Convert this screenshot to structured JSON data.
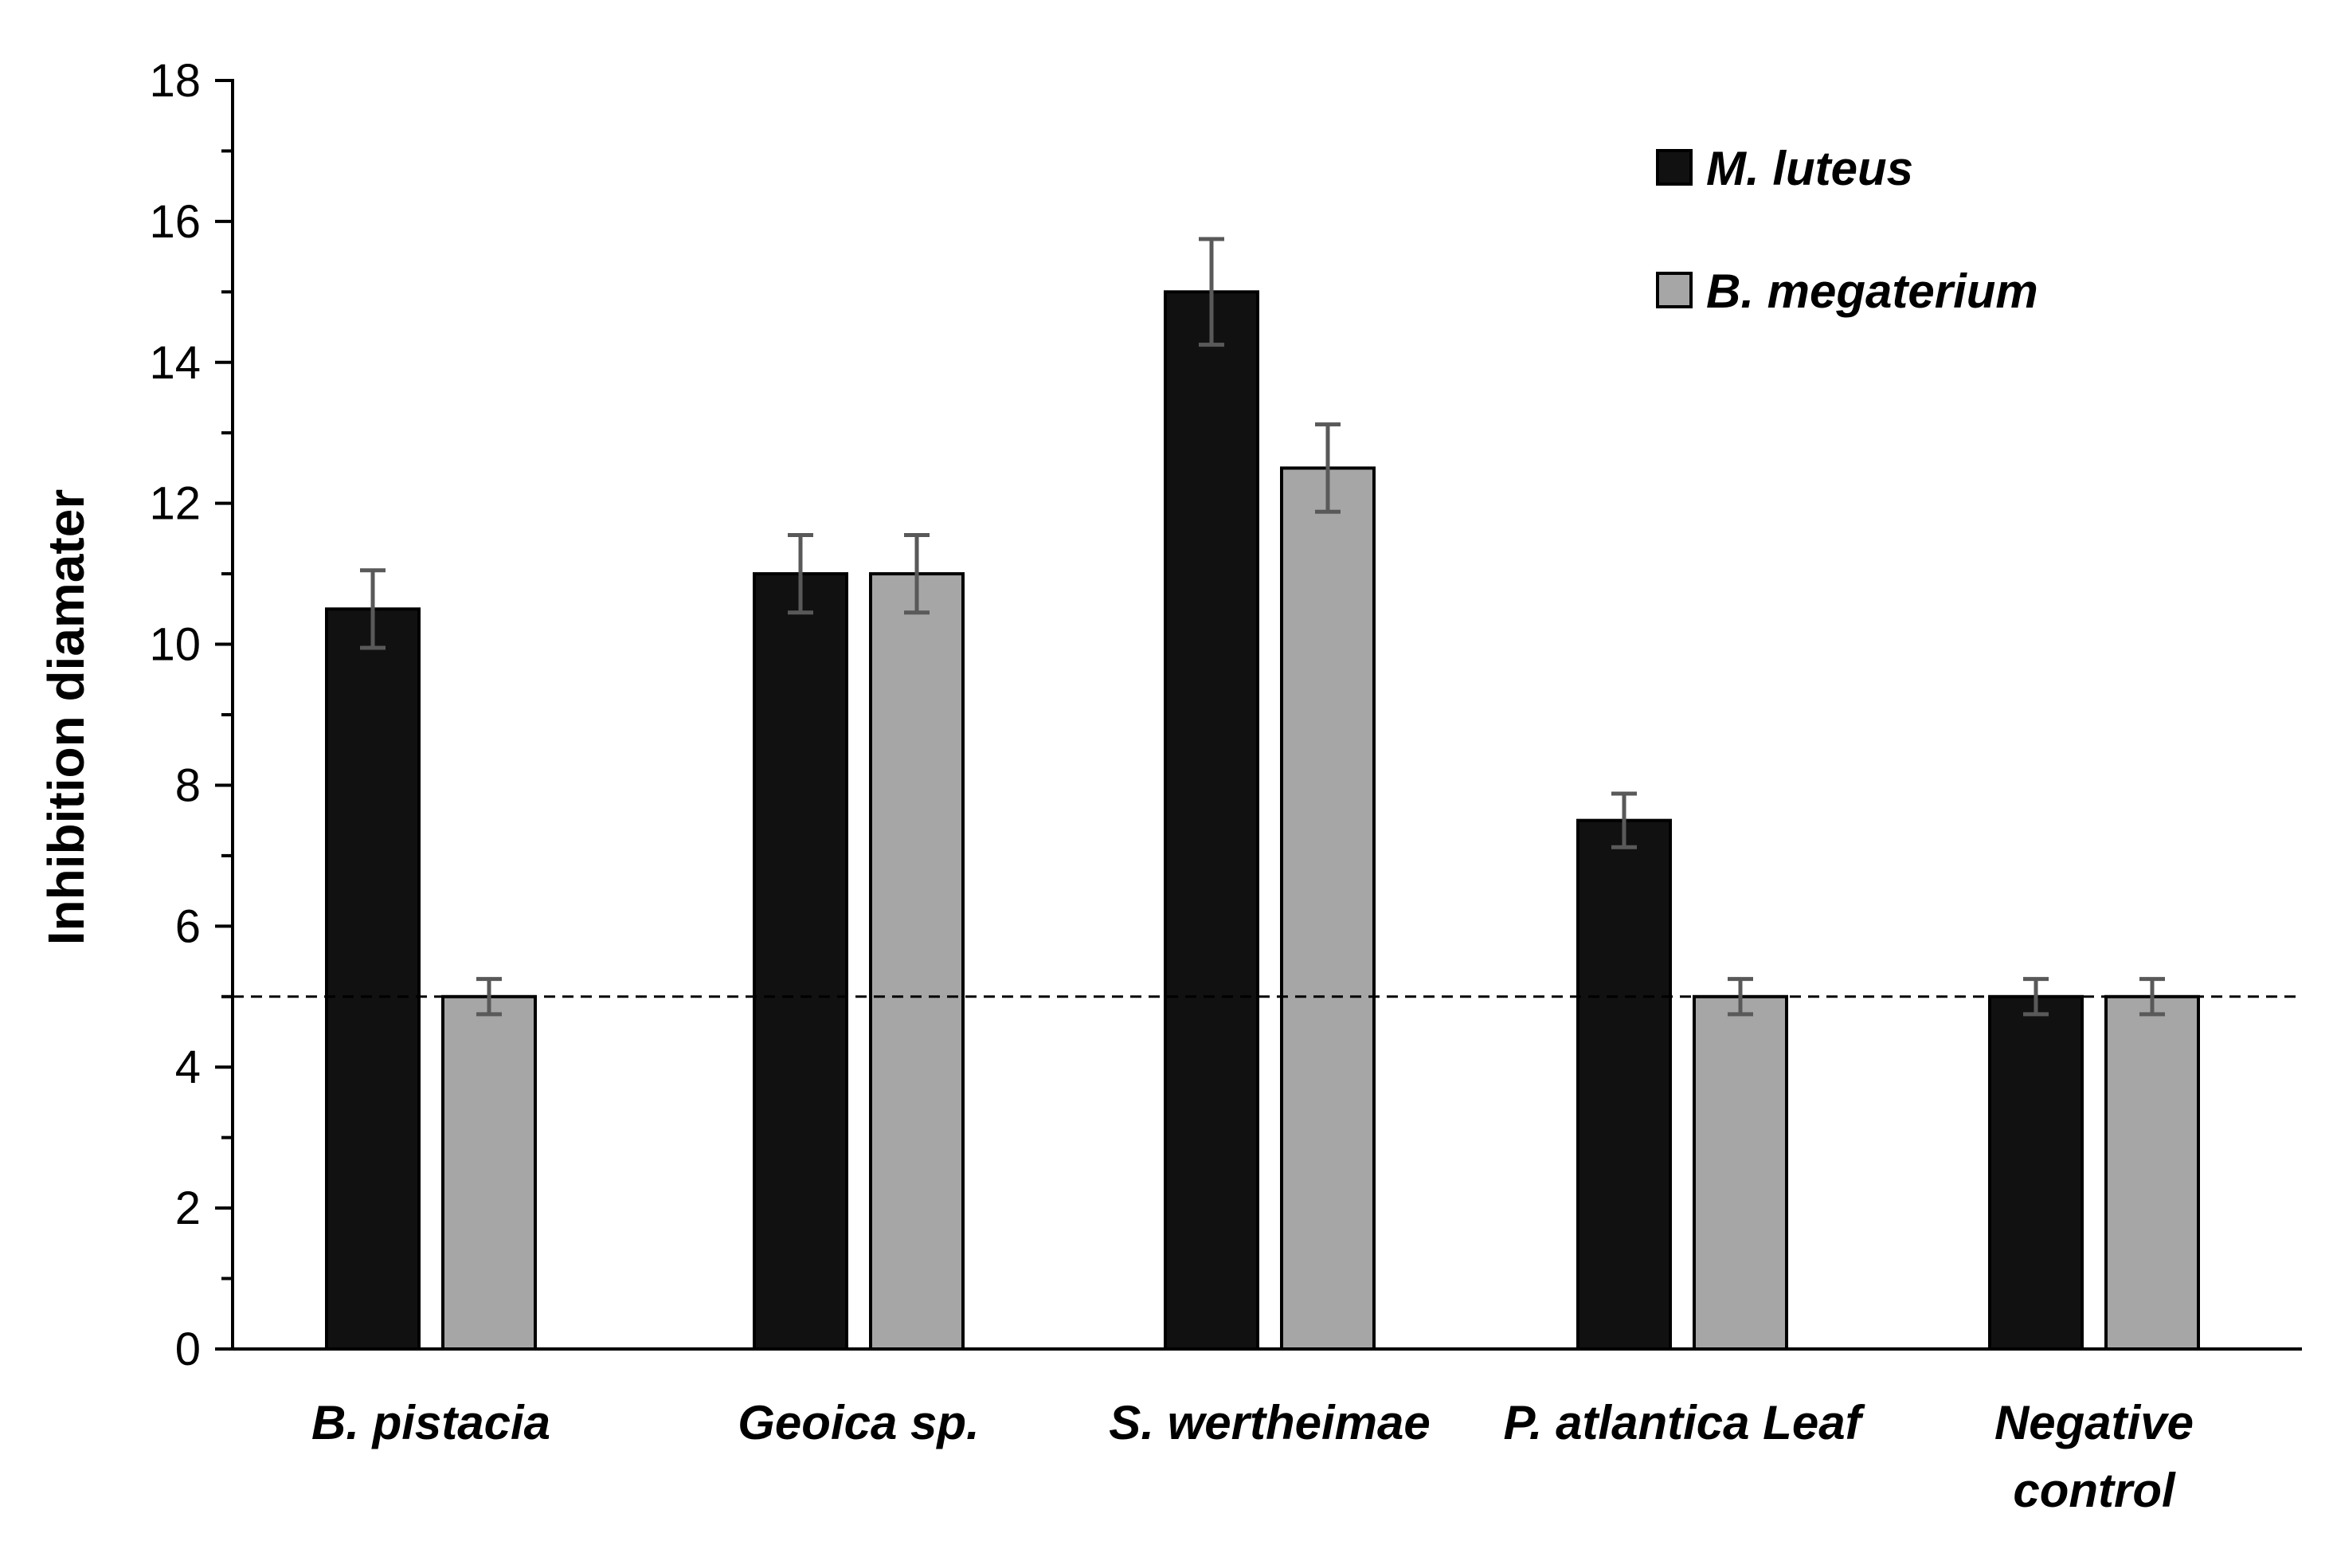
{
  "chart_data": {
    "type": "bar",
    "title": "",
    "xlabel": "",
    "ylabel": "Inhibition diamater",
    "ylim": [
      0,
      18
    ],
    "yticks": [
      "0",
      "2",
      "4",
      "6",
      "8",
      "10",
      "12",
      "14",
      "16",
      "18"
    ],
    "grid": false,
    "legend_position": "top-right",
    "categories": [
      [
        "B. pistacia"
      ],
      [
        "Geoica sp."
      ],
      [
        "S. wertheimae"
      ],
      [
        "P. atlantica Leaf"
      ],
      [
        "Negative",
        "control"
      ]
    ],
    "series": [
      {
        "name": "M. luteus",
        "color": "#111111",
        "values": [
          10.5,
          11.0,
          15.0,
          7.5,
          5.0
        ],
        "errors": [
          0.55,
          0.55,
          0.75,
          0.38,
          0.25
        ]
      },
      {
        "name": "B. megaterium",
        "color": "#a6a6a6",
        "values": [
          5.0,
          11.0,
          12.5,
          5.0,
          5.0
        ],
        "errors": [
          0.25,
          0.55,
          0.62,
          0.25,
          0.25
        ]
      }
    ],
    "reference_line": {
      "value": 5,
      "style": "dashed"
    }
  }
}
